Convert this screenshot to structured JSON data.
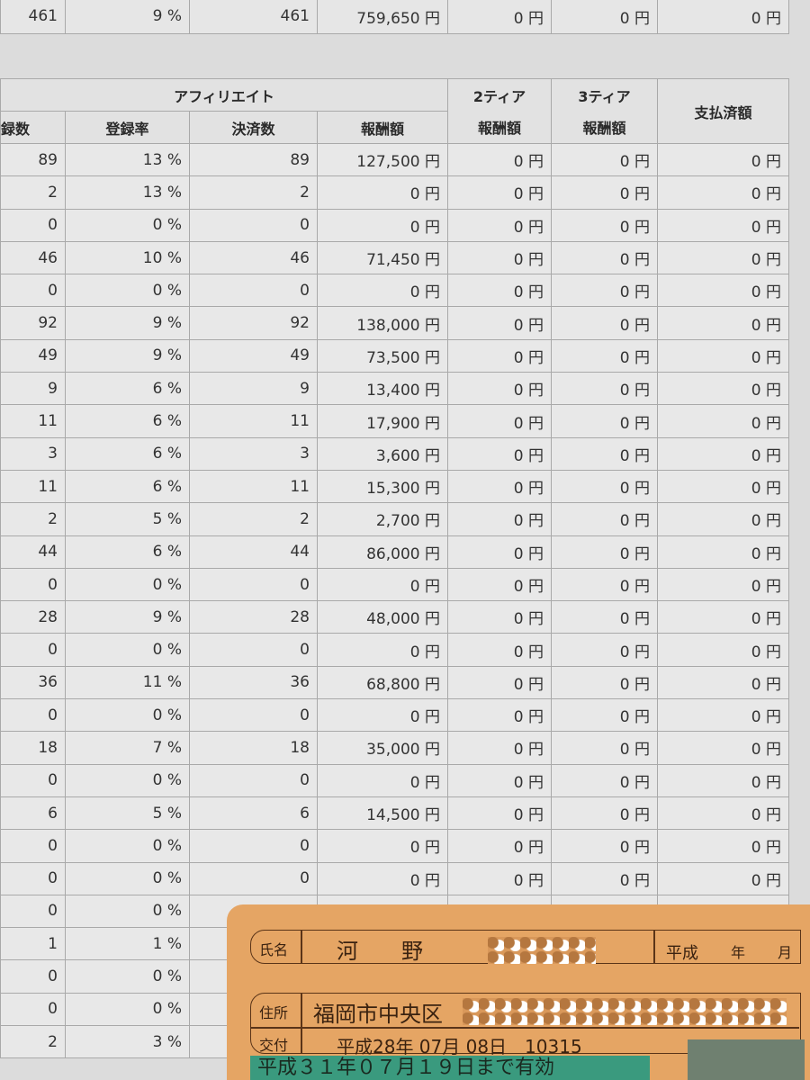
{
  "summary_row": [
    "461",
    "9 %",
    "461",
    "759,650 円",
    "0 円",
    "0 円",
    "0 円"
  ],
  "header": {
    "group_affiliate": "アフィリエイト",
    "tier2": "2ティア",
    "tier3": "3ティア",
    "paid": "支払済額",
    "sub": [
      "録数",
      "登録率",
      "決済数",
      "報酬額"
    ],
    "tier2_sub": "報酬額",
    "tier3_sub": "報酬額"
  },
  "rows": [
    [
      "89",
      "13 %",
      "89",
      "127,500 円"
    ],
    [
      "2",
      "13 %",
      "2",
      "0 円"
    ],
    [
      "0",
      "0 %",
      "0",
      "0 円"
    ],
    [
      "46",
      "10 %",
      "46",
      "71,450 円"
    ],
    [
      "0",
      "0 %",
      "0",
      "0 円"
    ],
    [
      "92",
      "9 %",
      "92",
      "138,000 円"
    ],
    [
      "49",
      "9 %",
      "49",
      "73,500 円"
    ],
    [
      "9",
      "6 %",
      "9",
      "13,400 円"
    ],
    [
      "11",
      "6 %",
      "11",
      "17,900 円"
    ],
    [
      "3",
      "6 %",
      "3",
      "3,600 円"
    ],
    [
      "11",
      "6 %",
      "11",
      "15,300 円"
    ],
    [
      "2",
      "5 %",
      "2",
      "2,700 円"
    ],
    [
      "44",
      "6 %",
      "44",
      "86,000 円"
    ],
    [
      "0",
      "0 %",
      "0",
      "0 円"
    ],
    [
      "28",
      "9 %",
      "28",
      "48,000 円"
    ],
    [
      "0",
      "0 %",
      "0",
      "0 円"
    ],
    [
      "36",
      "11 %",
      "36",
      "68,800 円"
    ],
    [
      "0",
      "0 %",
      "0",
      "0 円"
    ],
    [
      "18",
      "7 %",
      "18",
      "35,000 円"
    ],
    [
      "0",
      "0 %",
      "0",
      "0 円"
    ],
    [
      "6",
      "5 %",
      "6",
      "14,500 円"
    ],
    [
      "0",
      "0 %",
      "0",
      "0 円"
    ],
    [
      "0",
      "0 %",
      "0",
      "0 円"
    ],
    [
      "0",
      "0 %",
      "",
      ""
    ],
    [
      "1",
      "1 %",
      "",
      ""
    ],
    [
      "0",
      "0 %",
      "",
      ""
    ],
    [
      "0",
      "0 %",
      "",
      ""
    ],
    [
      "2",
      "3 %",
      "",
      ""
    ]
  ],
  "zero_yen": "0 円",
  "license": {
    "name_label": "氏名",
    "name": "河　　野",
    "era_label": "平成",
    "year_suffix": "年",
    "month_suffix": "月",
    "address_label": "住所",
    "address": "福岡市中央区",
    "issue_label": "交付",
    "issue": "平成28年 07月 08日　10315",
    "valid": "平成３１年０７月１９日まで有効",
    "card_color": "#e5a564",
    "band_color": "#3a9a7e"
  }
}
